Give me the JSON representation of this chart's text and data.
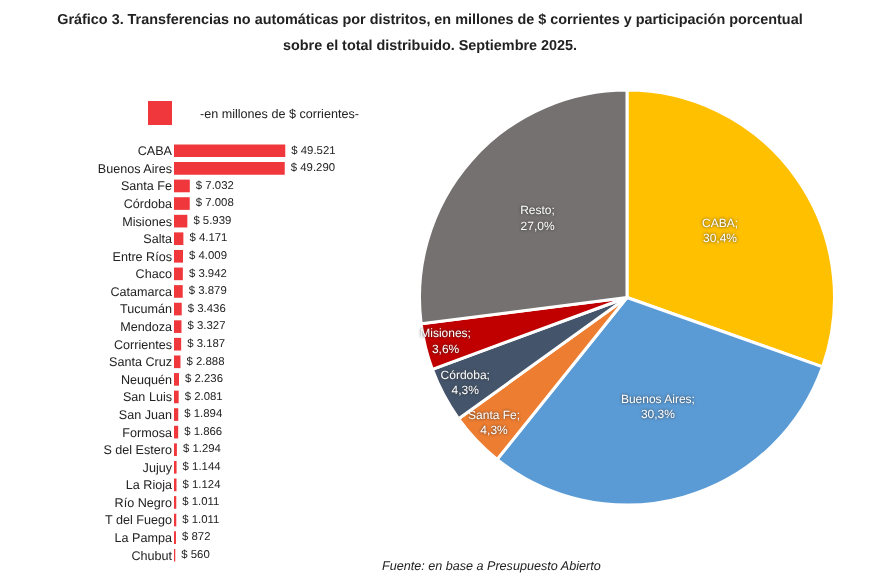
{
  "chart_data": [
    {
      "type": "bar",
      "orientation": "horizontal",
      "title": "Gráfico 3. Transferencias no automáticas por distritos, en millones de $ corrientes y participación porcentual sobre el total distribuido. Septiembre 2025.",
      "legend": "top",
      "categories": [
        "CABA",
        "Buenos Aires",
        "Santa Fe",
        "Córdoba",
        "Misiones",
        "Salta",
        "Entre Ríos",
        "Chaco",
        "Catamarca",
        "Tucumán",
        "Mendoza",
        "Corrientes",
        "Santa Cruz",
        "Neuquén",
        "San Luis",
        "San Juan",
        "Formosa",
        "S del Estero",
        "Jujuy",
        "La Rioja",
        "Río Negro",
        "T del Fuego",
        "La Pampa",
        "Chubut"
      ],
      "series": [
        {
          "name": "-en millones de $ corrientes-",
          "color": "#f0383c",
          "values": [
            49521,
            49290,
            7032,
            7008,
            5939,
            4171,
            4009,
            3942,
            3879,
            3436,
            3327,
            3187,
            2888,
            2236,
            2081,
            1894,
            1866,
            1294,
            1144,
            1124,
            1011,
            1011,
            872,
            560
          ],
          "value_labels": [
            "$ 49.521",
            "$ 49.290",
            "$ 7.032",
            "$ 7.008",
            "$ 5.939",
            "$ 4.171",
            "$ 4.009",
            "$ 3.942",
            "$ 3.879",
            "$ 3.436",
            "$ 3.327",
            "$ 3.187",
            "$ 2.888",
            "$ 2.236",
            "$ 2.081",
            "$ 1.894",
            "$ 1.866",
            "$ 1.294",
            "$ 1.144",
            "$ 1.124",
            "$ 1.011",
            "$ 1.011",
            "$ 872",
            "$ 560"
          ]
        }
      ]
    },
    {
      "type": "pie",
      "legend": false,
      "annotations": [
        "Fuente: en base a Presupuesto Abierto"
      ],
      "categories": [
        "CABA",
        "Buenos Aires",
        "Santa Fe",
        "Córdoba",
        "Misiones",
        "Resto"
      ],
      "values": [
        30.4,
        30.3,
        4.3,
        4.3,
        3.6,
        27.0
      ],
      "value_labels": [
        ";\n30,4%",
        ";\n30,3%",
        ";\n4,3%",
        ";\n4,3%",
        ";\n3,6%",
        ";\n27,0%"
      ],
      "colors": [
        "#ffc000",
        "#5b9bd5",
        "#ed7d31",
        "#44546a",
        "#c00000",
        "#767171"
      ]
    }
  ]
}
